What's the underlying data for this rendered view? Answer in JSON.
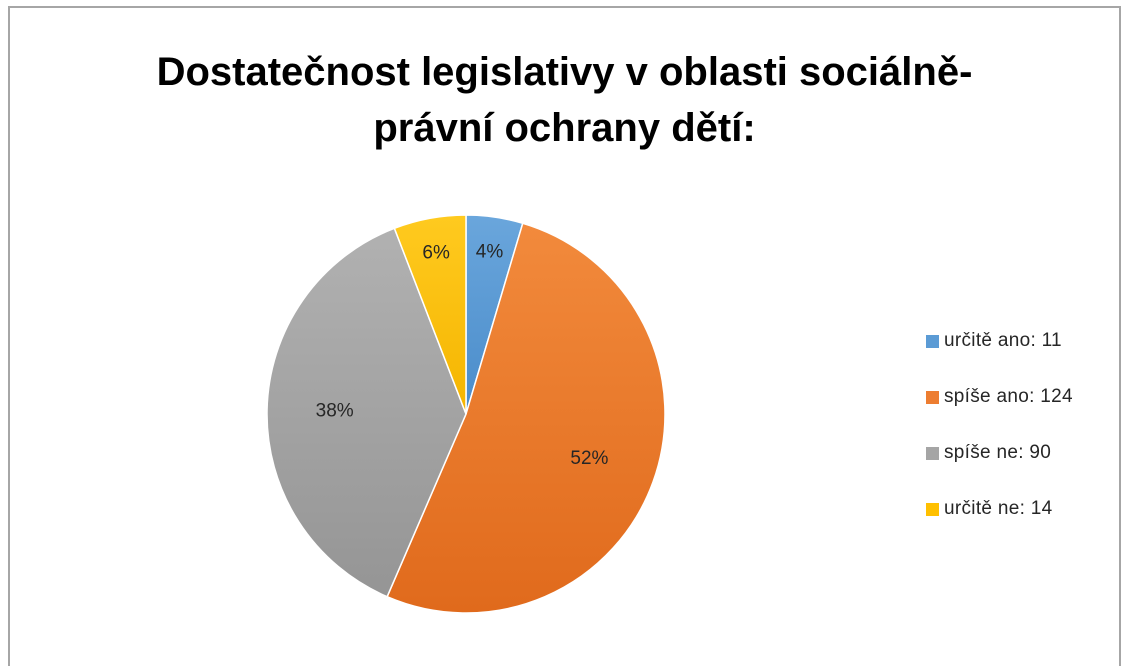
{
  "chart_data": {
    "type": "pie",
    "title": "Dostatečnost legislativy v oblasti sociálně-právní ochrany dětí:",
    "title_lines": [
      "Dostatečnost legislativy v oblasti sociálně-",
      "právní ochrany dětí:"
    ],
    "slices": [
      {
        "label": "určitě ano: 11",
        "value": 11,
        "percent_label": "4%",
        "color": "#5b9bd5"
      },
      {
        "label": "spíše ano: 124",
        "value": 124,
        "percent_label": "52%",
        "color": "#ed7d31"
      },
      {
        "label": "spíše ne: 90",
        "value": 90,
        "percent_label": "38%",
        "color": "#a5a5a5"
      },
      {
        "label": "určitě ne: 14",
        "value": 14,
        "percent_label": "6%",
        "color": "#ffc000"
      }
    ],
    "legend_position": "right"
  }
}
